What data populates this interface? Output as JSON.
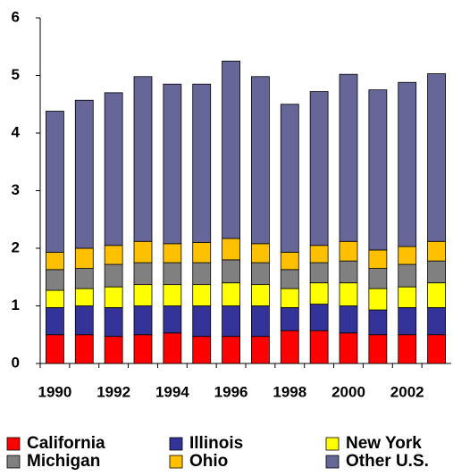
{
  "chart_data": {
    "type": "stacked_bar",
    "categories": [
      "1990",
      null,
      "1992",
      null,
      "1994",
      null,
      "1996",
      null,
      "1998",
      null,
      "2000",
      null,
      "2002",
      null
    ],
    "series": [
      {
        "name": "California",
        "color": "#ff0000",
        "values": [
          0.5,
          0.5,
          0.47,
          0.5,
          0.53,
          0.47,
          0.47,
          0.47,
          0.57,
          0.57,
          0.53,
          0.5,
          0.5,
          0.5
        ]
      },
      {
        "name": "Illinois",
        "color": "#333399",
        "values": [
          0.47,
          0.5,
          0.5,
          0.5,
          0.47,
          0.53,
          0.53,
          0.53,
          0.4,
          0.46,
          0.47,
          0.43,
          0.47,
          0.47
        ]
      },
      {
        "name": "New York",
        "color": "#ffff00",
        "values": [
          0.3,
          0.3,
          0.36,
          0.37,
          0.37,
          0.37,
          0.4,
          0.37,
          0.33,
          0.37,
          0.4,
          0.37,
          0.36,
          0.43
        ]
      },
      {
        "name": "Michigan",
        "color": "#808080",
        "values": [
          0.36,
          0.35,
          0.39,
          0.38,
          0.38,
          0.38,
          0.4,
          0.38,
          0.33,
          0.35,
          0.38,
          0.35,
          0.39,
          0.38
        ]
      },
      {
        "name": "Ohio",
        "color": "#ffc000",
        "values": [
          0.3,
          0.35,
          0.33,
          0.37,
          0.33,
          0.35,
          0.37,
          0.33,
          0.3,
          0.3,
          0.34,
          0.32,
          0.31,
          0.34
        ]
      },
      {
        "name": "Other U.S.",
        "color": "#666699",
        "values": [
          2.45,
          2.57,
          2.65,
          2.86,
          2.77,
          2.75,
          3.08,
          2.9,
          2.57,
          2.67,
          2.9,
          2.78,
          2.85,
          2.91
        ]
      }
    ],
    "ylim": [
      0,
      6
    ],
    "yticks": [
      0,
      1,
      2,
      3,
      4,
      5,
      6
    ],
    "legend": "bottom"
  }
}
